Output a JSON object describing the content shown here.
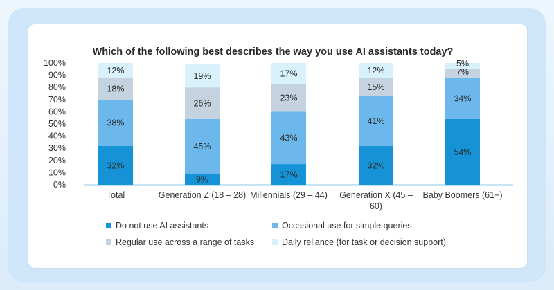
{
  "chart_data": {
    "type": "bar",
    "stacked": true,
    "title": "Which of the following best describes the way you use AI assistants today?",
    "categories": [
      "Total",
      "Generation Z (18 – 28)",
      "Millennials (29 – 44)",
      "Generation X (45 – 60)",
      "Baby Boomers (61+)"
    ],
    "series": [
      {
        "name": "Do not use AI assistants",
        "color": "#1593d6",
        "values": [
          32,
          9,
          17,
          32,
          54
        ]
      },
      {
        "name": "Occasional use for simple queries",
        "color": "#6cb8ec",
        "values": [
          38,
          45,
          43,
          41,
          34
        ]
      },
      {
        "name": "Regular use across a range of tasks",
        "color": "#c4d3df",
        "values": [
          18,
          26,
          23,
          15,
          7
        ]
      },
      {
        "name": "Daily reliance (for task or decision support)",
        "color": "#d8f1fb",
        "values": [
          12,
          19,
          17,
          12,
          5
        ]
      }
    ],
    "ylim": [
      0,
      100
    ],
    "yticks": [
      "0%",
      "10%",
      "20%",
      "30%",
      "40%",
      "50%",
      "60%",
      "70%",
      "80%",
      "90%",
      "100%"
    ],
    "data_labels": [
      "%"
    ],
    "grid": false,
    "legend_position": "bottom"
  }
}
